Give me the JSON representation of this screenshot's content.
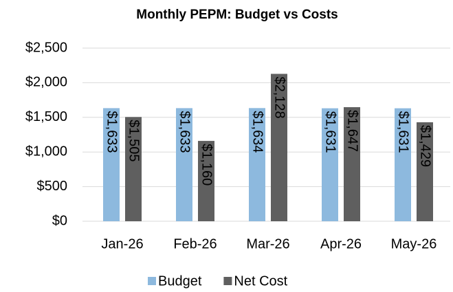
{
  "chart_data": {
    "type": "bar",
    "title": "Monthly PEPM: Budget vs Costs",
    "categories": [
      "Jan-26",
      "Feb-26",
      "Mar-26",
      "Apr-26",
      "May-26"
    ],
    "series": [
      {
        "name": "Budget",
        "color": "#8db9de",
        "values": [
          1633,
          1633,
          1634,
          1631,
          1631
        ],
        "value_labels": [
          "$1,633",
          "$1,633",
          "$1,634",
          "$1,631",
          "$1,631"
        ]
      },
      {
        "name": "Net Cost",
        "color": "#5f5f5f",
        "values": [
          1505,
          1160,
          2128,
          1647,
          1429
        ],
        "value_labels": [
          "$1,505",
          "$1,160",
          "$2,128",
          "$1,647",
          "$1,429"
        ]
      }
    ],
    "ylim": [
      0,
      2500
    ],
    "yticks": [
      {
        "value": 0,
        "label": "$0"
      },
      {
        "value": 500,
        "label": "$500"
      },
      {
        "value": 1000,
        "label": "$1,000"
      },
      {
        "value": 1500,
        "label": "$1,500"
      },
      {
        "value": 2000,
        "label": "$2,000"
      },
      {
        "value": 2500,
        "label": "$2,500"
      }
    ],
    "grid": true,
    "legend": "bottom"
  }
}
